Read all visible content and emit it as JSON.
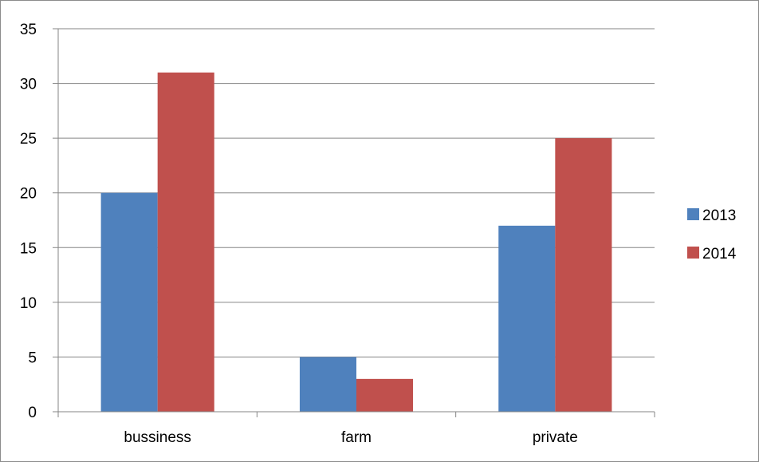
{
  "chart_data": {
    "type": "bar",
    "title": "",
    "xlabel": "",
    "ylabel": "",
    "categories": [
      "bussiness",
      "farm",
      "private"
    ],
    "series": [
      {
        "name": "2013",
        "values": [
          20,
          5,
          17
        ],
        "color": "#4f81bd"
      },
      {
        "name": "2014",
        "values": [
          31,
          3,
          25
        ],
        "color": "#c0504d"
      }
    ],
    "ylim": [
      0,
      35
    ],
    "yticks": [
      "0",
      "5",
      "10",
      "15",
      "20",
      "25",
      "30",
      "35"
    ],
    "grid": true,
    "legend_position": "right"
  }
}
